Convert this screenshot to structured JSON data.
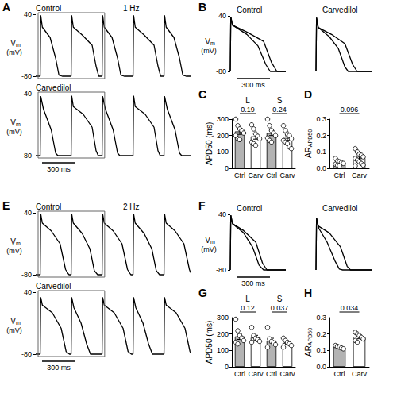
{
  "chart_data": [
    {
      "label": "A",
      "type": "line",
      "title": "Control",
      "subtitle": "1 Hz",
      "ylabel": {
        "text": "V",
        "subscript": "m",
        "unit": "(mV)"
      },
      "xlim": [
        0,
        1400
      ],
      "ylim": [
        -80,
        40
      ],
      "yticks": [
        -80,
        40
      ],
      "tick_labels": "y",
      "color": "#000000",
      "series": [
        {
          "x": [
            0,
            40,
            45,
            60,
            130,
            180,
            210,
            240,
            320,
            325,
            340,
            420,
            510,
            545,
            570,
            600,
            605,
            620,
            690,
            740,
            770,
            800,
            880,
            885,
            900,
            980,
            1070,
            1105,
            1130,
            1160,
            1165,
            1180,
            1250,
            1300,
            1330,
            1360,
            1400
          ],
          "values": [
            -80,
            -80,
            38,
            15,
            -5,
            -45,
            -78,
            -80,
            -80,
            38,
            15,
            0,
            -20,
            -60,
            -80,
            -80,
            38,
            15,
            -5,
            -45,
            -78,
            -80,
            -80,
            38,
            15,
            0,
            -20,
            -60,
            -80,
            -80,
            38,
            15,
            -5,
            -45,
            -78,
            -80,
            -80
          ]
        }
      ]
    },
    {
      "type": "line",
      "title": "Carvedilol",
      "ylabel": {
        "text": "V",
        "subscript": "m",
        "unit": "(mV)"
      },
      "xlim": [
        0,
        1400
      ],
      "ylim": [
        -80,
        40
      ],
      "yticks": [
        -80,
        40
      ],
      "tick_labels": "y",
      "color": "#000000",
      "scale_bar": {
        "value": 300,
        "label": "300 ms"
      },
      "series": [
        {
          "x": [
            0,
            40,
            45,
            70,
            140,
            180,
            200,
            320,
            325,
            340,
            430,
            510,
            545,
            565,
            600,
            605,
            630,
            700,
            740,
            760,
            880,
            885,
            900,
            990,
            1070,
            1105,
            1125,
            1160,
            1165,
            1190,
            1260,
            1300,
            1320,
            1400
          ],
          "values": [
            -80,
            -80,
            35,
            10,
            -30,
            -75,
            -80,
            -80,
            36,
            15,
            0,
            -25,
            -70,
            -80,
            -80,
            35,
            10,
            -30,
            -75,
            -80,
            -80,
            36,
            15,
            0,
            -25,
            -70,
            -80,
            -80,
            35,
            10,
            -30,
            -75,
            -80,
            -80
          ]
        }
      ]
    },
    {
      "label": "B",
      "type": "line",
      "title": "Control",
      "ylabel": {
        "text": "V",
        "subscript": "m",
        "unit": "(mV)"
      },
      "xlim": [
        0,
        500
      ],
      "ylim": [
        -80,
        40
      ],
      "yticks": [
        -80,
        40
      ],
      "tick_labels": "y",
      "color": "#000000",
      "scale_bar": {
        "value": 300,
        "label": "300 ms"
      },
      "series": [
        {
          "x": [
            0,
            5,
            20,
            150,
            300,
            370,
            420,
            500
          ],
          "values": [
            -80,
            38,
            20,
            5,
            -15,
            -60,
            -80,
            -80
          ]
        },
        {
          "x": [
            0,
            5,
            20,
            150,
            250,
            320,
            360,
            500
          ],
          "values": [
            -80,
            38,
            20,
            0,
            -25,
            -65,
            -80,
            -80
          ]
        }
      ]
    },
    {
      "type": "line",
      "title": "Carvedilol",
      "xlim": [
        0,
        500
      ],
      "ylim": [
        -80,
        40
      ],
      "tick_labels": false,
      "color": "#000000",
      "series": [
        {
          "x": [
            0,
            5,
            20,
            140,
            260,
            330,
            370,
            500
          ],
          "values": [
            -80,
            36,
            15,
            0,
            -20,
            -65,
            -80,
            -80
          ]
        },
        {
          "x": [
            0,
            5,
            20,
            120,
            200,
            260,
            290,
            500
          ],
          "values": [
            -80,
            36,
            15,
            -5,
            -30,
            -70,
            -80,
            -80
          ]
        }
      ]
    },
    {
      "label": "C",
      "type": "bar",
      "ylabel": "APD50 (ms)",
      "ylim": [
        0,
        300
      ],
      "yticks": [
        0,
        100,
        200,
        300
      ],
      "groups": [
        {
          "name": "L",
          "categories": [
            "Ctrl",
            "Carv"
          ],
          "colors": [
            "#b3b3b3",
            "#ffffff"
          ],
          "values": [
            225,
            195
          ],
          "errors": [
            18,
            17
          ],
          "points": [
            [
              300,
              260,
              240,
              230,
              215,
              200,
              180,
              175
            ],
            [
              265,
              240,
              210,
              195,
              180,
              160,
              150,
              140
            ]
          ],
          "p_value": 0.19
        },
        {
          "name": "S",
          "categories": [
            "Ctrl",
            "Carv"
          ],
          "colors": [
            "#b3b3b3",
            "#ffffff"
          ],
          "values": [
            215,
            185
          ],
          "errors": [
            15,
            14
          ],
          "points": [
            [
              300,
              260,
              230,
              215,
              200,
              185,
              170,
              160
            ],
            [
              260,
              230,
              210,
              200,
              180,
              170,
              160,
              150,
              130,
              120
            ]
          ],
          "p_value": 0.24
        }
      ]
    },
    {
      "label": "D",
      "type": "bar",
      "ylabel": {
        "text": "AR",
        "subscript": "APD50"
      },
      "ylim": [
        0,
        0.3
      ],
      "yticks": [
        {
          "value": 0,
          "label": "0.0"
        },
        0.1,
        0.2,
        0.3
      ],
      "groups": [
        {
          "categories": [
            "Ctrl",
            "Carv"
          ],
          "colors": [
            "#b3b3b3",
            "#ffffff"
          ],
          "values": [
            0.033,
            0.063
          ],
          "errors": [
            0.006,
            0.01
          ],
          "points": [
            [
              0.06,
              0.045,
              0.04,
              0.035,
              0.03,
              0.025,
              0.02,
              0.015
            ],
            [
              0.12,
              0.1,
              0.085,
              0.08,
              0.07,
              0.06,
              0.05,
              0.04,
              0.03,
              0.02,
              0.015
            ]
          ],
          "p_value": 0.096
        }
      ]
    },
    {
      "label": "E",
      "type": "line",
      "title": "Control",
      "subtitle": "2 Hz",
      "ylabel": {
        "text": "V",
        "subscript": "m",
        "unit": "(mV)"
      },
      "xlim": [
        0,
        1400
      ],
      "ylim": [
        -80,
        40
      ],
      "yticks": [
        -80,
        40
      ],
      "tick_labels": "y",
      "color": "#000000",
      "series": [
        {
          "x": [
            0,
            40,
            45,
            60,
            140,
            220,
            270,
            300,
            320,
            325,
            340,
            420,
            490,
            530,
            560,
            600,
            605,
            620,
            700,
            780,
            830,
            860,
            880,
            885,
            900,
            980,
            1050,
            1090,
            1120,
            1160,
            1165,
            1180,
            1260,
            1340,
            1390,
            1400
          ],
          "values": [
            -80,
            -80,
            38,
            20,
            5,
            -20,
            -70,
            -80,
            -80,
            38,
            20,
            0,
            -30,
            -72,
            -80,
            -80,
            38,
            20,
            5,
            -20,
            -70,
            -80,
            -80,
            38,
            20,
            0,
            -30,
            -72,
            -80,
            -80,
            38,
            20,
            5,
            -20,
            -70,
            -76
          ]
        }
      ]
    },
    {
      "type": "line",
      "title": "Carvedilol",
      "ylabel": {
        "text": "V",
        "subscript": "m",
        "unit": "(mV)"
      },
      "xlim": [
        0,
        1400
      ],
      "ylim": [
        -80,
        40
      ],
      "yticks": [
        -80,
        40
      ],
      "tick_labels": "y",
      "color": "#000000",
      "scale_bar": {
        "value": 300,
        "label": "300 ms"
      },
      "series": [
        {
          "x": [
            0,
            40,
            45,
            60,
            150,
            230,
            275,
            305,
            320,
            325,
            345,
            410,
            460,
            495,
            600,
            605,
            620,
            710,
            790,
            835,
            865,
            880,
            885,
            905,
            970,
            1020,
            1055,
            1160,
            1165,
            1180,
            1270,
            1350,
            1395,
            1400
          ],
          "values": [
            -80,
            -80,
            30,
            15,
            0,
            -30,
            -75,
            -80,
            -80,
            30,
            10,
            -20,
            -60,
            -80,
            -80,
            30,
            15,
            0,
            -30,
            -75,
            -80,
            -80,
            30,
            10,
            -20,
            -60,
            -80,
            -80,
            30,
            15,
            0,
            -30,
            -75,
            -77
          ]
        }
      ]
    },
    {
      "label": "F",
      "type": "line",
      "title": "Control",
      "ylabel": {
        "text": "V",
        "subscript": "m",
        "unit": "(mV)"
      },
      "xlim": [
        0,
        500
      ],
      "ylim": [
        -80,
        40
      ],
      "yticks": [
        -80,
        40
      ],
      "tick_labels": "y",
      "color": "#000000",
      "scale_bar": {
        "value": 300,
        "label": "300 ms"
      },
      "series": [
        {
          "x": [
            0,
            5,
            20,
            120,
            230,
            290,
            330,
            500
          ],
          "values": [
            -80,
            38,
            20,
            5,
            -20,
            -65,
            -80,
            -80
          ]
        },
        {
          "x": [
            0,
            5,
            20,
            120,
            200,
            260,
            300,
            500
          ],
          "values": [
            -80,
            38,
            20,
            0,
            -30,
            -70,
            -80,
            -80
          ]
        }
      ]
    },
    {
      "type": "line",
      "title": "Carvedilol",
      "xlim": [
        0,
        500
      ],
      "ylim": [
        -80,
        40
      ],
      "tick_labels": false,
      "color": "#000000",
      "series": [
        {
          "x": [
            0,
            5,
            20,
            120,
            220,
            280,
            310,
            500
          ],
          "values": [
            -80,
            32,
            15,
            0,
            -30,
            -72,
            -80,
            -80
          ]
        },
        {
          "x": [
            0,
            5,
            25,
            100,
            170,
            210,
            240,
            500
          ],
          "values": [
            -80,
            32,
            10,
            -20,
            -60,
            -78,
            -80,
            -80
          ]
        }
      ]
    },
    {
      "label": "G",
      "type": "bar",
      "ylabel": "APD50 (ms)",
      "ylim": [
        0,
        300
      ],
      "yticks": [
        0,
        100,
        200,
        300
      ],
      "groups": [
        {
          "name": "L",
          "categories": [
            "Ctrl",
            "Carv"
          ],
          "colors": [
            "#b3b3b3",
            "#ffffff"
          ],
          "values": [
            185,
            178
          ],
          "errors": [
            18,
            14
          ],
          "points": [
            [
              290,
              220,
              190,
              175,
              160,
              150,
              140
            ],
            [
              240,
              190,
              175,
              165,
              155,
              150
            ]
          ],
          "p_value": 0.12
        },
        {
          "name": "S",
          "categories": [
            "Ctrl",
            "Carv"
          ],
          "colors": [
            "#b3b3b3",
            "#ffffff"
          ],
          "values": [
            160,
            145
          ],
          "errors": [
            14,
            8
          ],
          "points": [
            [
              240,
              170,
              155,
              145,
              135,
              120
            ],
            [
              175,
              160,
              150,
              140,
              130,
              120
            ]
          ],
          "p_value": 0.037
        }
      ]
    },
    {
      "label": "H",
      "type": "bar",
      "ylabel": {
        "text": "AR",
        "subscript": "APD50"
      },
      "ylim": [
        0,
        0.3
      ],
      "yticks": [
        {
          "value": 0,
          "label": "0.0"
        },
        0.1,
        0.2,
        0.3
      ],
      "groups": [
        {
          "categories": [
            "Ctrl",
            "Carv"
          ],
          "colors": [
            "#b3b3b3",
            "#ffffff"
          ],
          "values": [
            0.12,
            0.183
          ],
          "errors": [
            0.007,
            0.012
          ],
          "points": [
            [
              0.13,
              0.125,
              0.12,
              0.115,
              0.11
            ],
            [
              0.21,
              0.2,
              0.19,
              0.18,
              0.17,
              0.16,
              0.15
            ]
          ],
          "p_value": 0.034
        }
      ]
    }
  ]
}
